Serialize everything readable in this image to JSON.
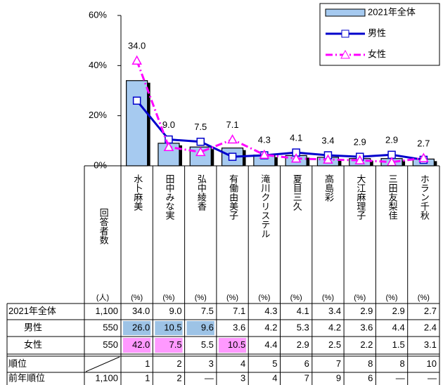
{
  "chart_data": {
    "type": "bar",
    "categories": [
      "水卜麻美",
      "田中みな実",
      "弘中綾香",
      "有働由美子",
      "滝川クリステル",
      "夏目三久",
      "高島彩",
      "大江麻理子",
      "三田友梨佳",
      "ホラン千秋"
    ],
    "series": [
      {
        "name": "2021年全体",
        "type": "bar",
        "color": "#a6caf0",
        "values": [
          34.0,
          9.0,
          7.5,
          7.1,
          4.3,
          4.1,
          3.4,
          2.9,
          2.9,
          2.7
        ],
        "value_labels": [
          "34.0",
          "9.0",
          "7.5",
          "7.1",
          "4.3",
          "4.1",
          "3.4",
          "2.9",
          "2.9",
          "2.7"
        ]
      },
      {
        "name": "男性",
        "type": "line",
        "color": "#0000cc",
        "values": [
          26.0,
          10.5,
          9.6,
          3.6,
          4.2,
          5.3,
          4.2,
          3.6,
          4.4,
          2.4
        ]
      },
      {
        "name": "女性",
        "type": "line",
        "color": "#ff00ff",
        "dash": true,
        "values": [
          42.0,
          7.5,
          5.5,
          10.5,
          4.4,
          2.9,
          2.5,
          2.2,
          1.5,
          3.1
        ]
      }
    ],
    "ylim": [
      0,
      60
    ],
    "yticks": [
      {
        "value": 0,
        "label": "0%"
      },
      {
        "value": 20,
        "label": "20%"
      },
      {
        "value": 40,
        "label": "40%"
      },
      {
        "value": 60,
        "label": "60%"
      }
    ],
    "legend": "upper right"
  },
  "table": {
    "respondents_header": "回答者数",
    "respondents_unit": "(人)",
    "column_unit": "(%)",
    "rows": [
      {
        "label": "2021年全体",
        "respondents": "1,100",
        "cells": [
          "34.0",
          "9.0",
          "7.5",
          "7.1",
          "4.3",
          "4.1",
          "3.4",
          "2.9",
          "2.9",
          "2.7"
        ]
      },
      {
        "label": "男性",
        "respondents": "550",
        "cells": [
          "26.0",
          "10.5",
          "9.6",
          "3.6",
          "4.2",
          "5.3",
          "4.2",
          "3.6",
          "4.4",
          "2.4"
        ]
      },
      {
        "label": "女性",
        "respondents": "550",
        "cells": [
          "42.0",
          "7.5",
          "5.5",
          "10.5",
          "4.4",
          "2.9",
          "2.5",
          "2.2",
          "1.5",
          "3.1"
        ]
      },
      {
        "label": "順位",
        "cells": [
          "1",
          "2",
          "3",
          "4",
          "5",
          "6",
          "7",
          "8",
          "8",
          "10"
        ]
      },
      {
        "label": "前年順位",
        "respondents": "1,100",
        "cells": [
          "1",
          "2",
          "—",
          "3",
          "4",
          "7",
          "9",
          "6",
          "—",
          "—"
        ]
      }
    ]
  }
}
